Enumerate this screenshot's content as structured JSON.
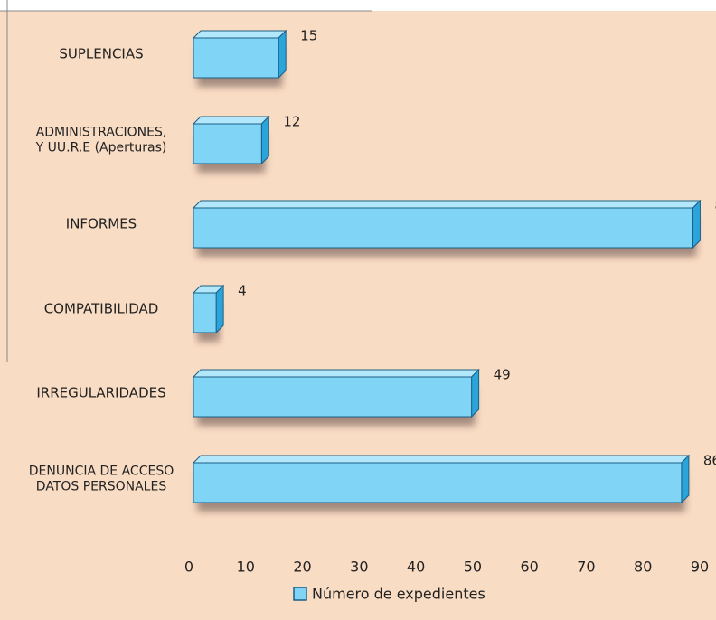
{
  "chart_data": {
    "type": "hbar",
    "categories": [
      "SUPLENCIAS",
      [
        "ADMINISTRACIONES,",
        "Y UU.R.E (Aperturas)"
      ],
      "INFORMES",
      "COMPATIBILIDAD",
      "IRREGULARIDADES",
      [
        "DENUNCIA DE ACCESO",
        "DATOS PERSONALES"
      ]
    ],
    "series": [
      {
        "name": "Número de expedientes",
        "color": "#80d4f6",
        "values": [
          15,
          12,
          88,
          4,
          49,
          86
        ]
      }
    ],
    "xlim": [
      0,
      90
    ],
    "xticks": [
      0,
      10,
      20,
      30,
      40,
      50,
      60,
      70,
      80,
      90
    ],
    "grid": false,
    "legend": "bottom"
  }
}
